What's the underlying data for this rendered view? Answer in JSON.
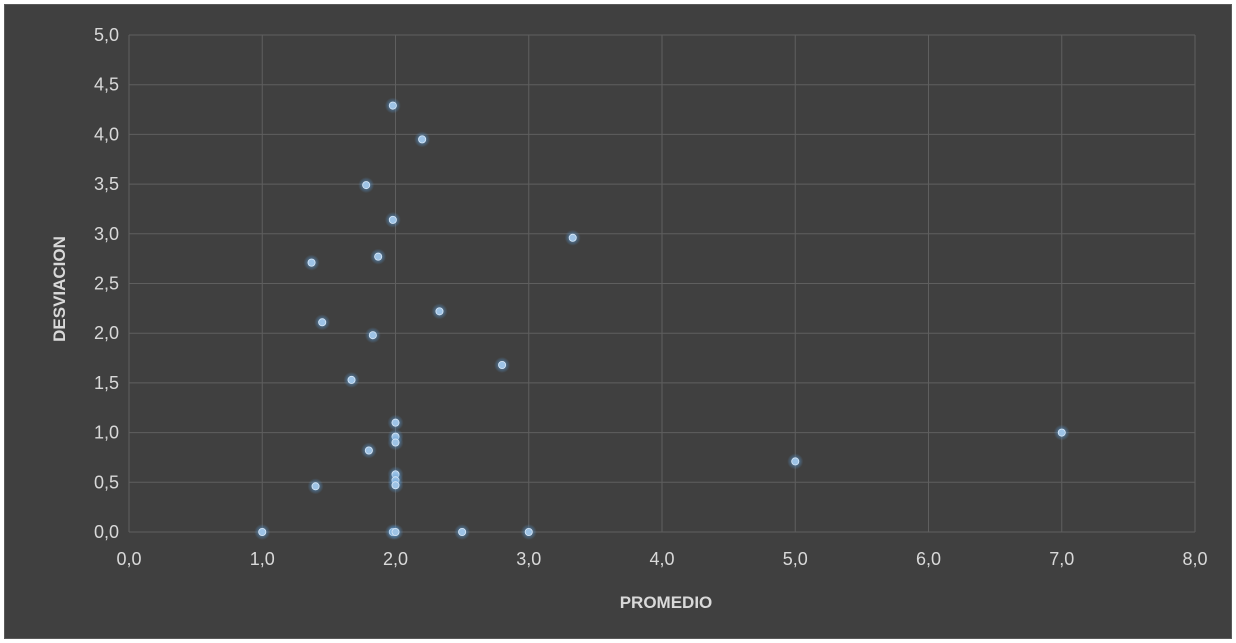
{
  "chart_data": {
    "type": "scatter",
    "xlabel": "PROMEDIO",
    "ylabel": "DESVIACION",
    "xlim": [
      0,
      8
    ],
    "ylim": [
      0,
      5
    ],
    "x_ticks": [
      "0,0",
      "1,0",
      "2,0",
      "3,0",
      "4,0",
      "5,0",
      "6,0",
      "7,0",
      "8,0"
    ],
    "y_ticks": [
      "0,0",
      "0,5",
      "1,0",
      "1,5",
      "2,0",
      "2,5",
      "3,0",
      "3,5",
      "4,0",
      "4,5",
      "5,0"
    ],
    "grid": true,
    "legend": "none",
    "colors": {
      "background": "#404040",
      "grid": "#5f5f5f",
      "point": "#9dc3e6",
      "point_glow": "#5b9bd5",
      "text": "#d9d9d9"
    },
    "points": [
      {
        "x": 1.0,
        "y": 0.0
      },
      {
        "x": 1.4,
        "y": 0.46
      },
      {
        "x": 1.37,
        "y": 2.71
      },
      {
        "x": 1.45,
        "y": 2.11
      },
      {
        "x": 1.67,
        "y": 1.53
      },
      {
        "x": 1.78,
        "y": 3.49
      },
      {
        "x": 1.8,
        "y": 0.82
      },
      {
        "x": 1.83,
        "y": 1.98
      },
      {
        "x": 1.87,
        "y": 2.77
      },
      {
        "x": 1.98,
        "y": 4.29
      },
      {
        "x": 1.98,
        "y": 3.14
      },
      {
        "x": 2.0,
        "y": 1.1
      },
      {
        "x": 2.0,
        "y": 0.96
      },
      {
        "x": 2.0,
        "y": 0.9
      },
      {
        "x": 2.0,
        "y": 0.58
      },
      {
        "x": 2.0,
        "y": 0.52
      },
      {
        "x": 2.0,
        "y": 0.47
      },
      {
        "x": 1.98,
        "y": 0.0
      },
      {
        "x": 2.0,
        "y": 0.0
      },
      {
        "x": 2.2,
        "y": 3.95
      },
      {
        "x": 2.33,
        "y": 2.22
      },
      {
        "x": 2.5,
        "y": 0.0
      },
      {
        "x": 2.8,
        "y": 1.68
      },
      {
        "x": 3.0,
        "y": 0.0
      },
      {
        "x": 3.33,
        "y": 2.96
      },
      {
        "x": 5.0,
        "y": 0.71
      },
      {
        "x": 7.0,
        "y": 1.0
      }
    ]
  }
}
